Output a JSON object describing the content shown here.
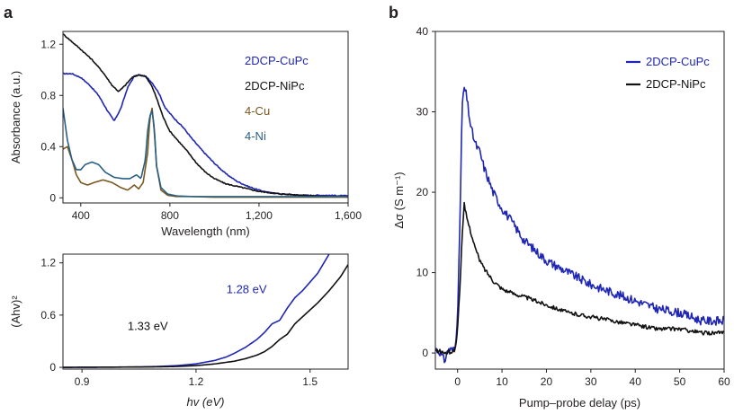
{
  "panel_labels": {
    "a": "a",
    "b": "b"
  },
  "colors": {
    "cupc": "#1f26b5",
    "nipc": "#111111",
    "cu4": "#7a5a22",
    "ni4": "#2a5f84",
    "axis": "#231f20"
  },
  "chart_data": [
    {
      "id": "absorbance",
      "type": "line",
      "title": "",
      "xlabel": "Wavelength (nm)",
      "ylabel": "Absorbance (a.u.)",
      "xlim": [
        320,
        1600
      ],
      "ylim": [
        -0.04,
        1.3
      ],
      "xticks": [
        400,
        800,
        1200,
        1600
      ],
      "xtick_labels": [
        "400",
        "800",
        "1,200",
        "1,600"
      ],
      "yticks": [
        0,
        0.4,
        0.8,
        1.2
      ],
      "ytick_labels": [
        "0",
        "0.4",
        "0.8",
        "1.2"
      ],
      "legend": [
        "2DCP-CuPc",
        "2DCP-NiPc",
        "4-Cu",
        "4-Ni"
      ],
      "legend_position": "top-right",
      "series": [
        {
          "name": "2DCP-CuPc",
          "color": "#1f26b5",
          "noise": 0.004,
          "x": [
            320,
            360,
            400,
            440,
            480,
            520,
            550,
            580,
            610,
            640,
            660,
            690,
            720,
            750,
            780,
            820,
            860,
            900,
            950,
            1000,
            1050,
            1100,
            1150,
            1200,
            1250,
            1300,
            1350,
            1400,
            1500,
            1600
          ],
          "y": [
            0.97,
            0.97,
            0.94,
            0.88,
            0.8,
            0.68,
            0.6,
            0.7,
            0.86,
            0.95,
            0.96,
            0.95,
            0.9,
            0.82,
            0.7,
            0.62,
            0.55,
            0.46,
            0.36,
            0.27,
            0.19,
            0.13,
            0.09,
            0.06,
            0.04,
            0.03,
            0.025,
            0.02,
            0.02,
            0.015
          ]
        },
        {
          "name": "2DCP-NiPc",
          "color": "#111111",
          "noise": 0.004,
          "x": [
            320,
            360,
            400,
            450,
            500,
            540,
            570,
            600,
            630,
            660,
            690,
            720,
            740,
            770,
            800,
            840,
            880,
            920,
            960,
            1000,
            1050,
            1100,
            1150,
            1200,
            1250,
            1300,
            1350,
            1400,
            1500,
            1600
          ],
          "y": [
            1.28,
            1.22,
            1.16,
            1.08,
            0.98,
            0.88,
            0.83,
            0.88,
            0.94,
            0.96,
            0.95,
            0.87,
            0.78,
            0.63,
            0.52,
            0.44,
            0.36,
            0.27,
            0.2,
            0.15,
            0.11,
            0.09,
            0.07,
            0.05,
            0.04,
            0.03,
            0.025,
            0.02,
            0.01,
            0.01
          ]
        },
        {
          "name": "4-Cu",
          "color": "#7a5a22",
          "noise": 0.0,
          "x": [
            320,
            340,
            360,
            380,
            400,
            430,
            460,
            500,
            540,
            580,
            610,
            640,
            660,
            680,
            700,
            710,
            720,
            730,
            740,
            760,
            790,
            830,
            900,
            1000,
            1100,
            1200,
            1400,
            1600
          ],
          "y": [
            0.38,
            0.4,
            0.3,
            0.18,
            0.12,
            0.1,
            0.12,
            0.14,
            0.12,
            0.08,
            0.06,
            0.1,
            0.07,
            0.12,
            0.35,
            0.62,
            0.7,
            0.52,
            0.25,
            0.06,
            0.02,
            0.01,
            0.01,
            0.005,
            0.005,
            0.005,
            0.005,
            0.005
          ]
        },
        {
          "name": "4-Ni",
          "color": "#2a5f84",
          "noise": 0.0,
          "x": [
            320,
            340,
            360,
            380,
            400,
            420,
            450,
            480,
            510,
            550,
            590,
            620,
            650,
            670,
            690,
            700,
            710,
            720,
            730,
            740,
            760,
            790,
            830,
            900,
            1000,
            1100,
            1200,
            1400,
            1600
          ],
          "y": [
            0.7,
            0.45,
            0.3,
            0.22,
            0.22,
            0.26,
            0.28,
            0.26,
            0.2,
            0.16,
            0.15,
            0.15,
            0.18,
            0.15,
            0.3,
            0.52,
            0.64,
            0.68,
            0.55,
            0.25,
            0.08,
            0.03,
            0.015,
            0.01,
            0.01,
            0.01,
            0.01,
            0.01,
            0.01
          ]
        }
      ]
    },
    {
      "id": "tauc",
      "type": "line",
      "title": "",
      "xlabel": "hv (eV)",
      "ylabel": "(Ahv)²",
      "xlim": [
        0.85,
        1.6
      ],
      "ylim": [
        -0.02,
        1.3
      ],
      "xticks": [
        0.9,
        1.2,
        1.5
      ],
      "xtick_labels": [
        "0.9",
        "1.2",
        "1.5"
      ],
      "yticks": [
        0,
        0.6,
        1.2
      ],
      "ytick_labels": [
        "0",
        "0.6",
        "1.2"
      ],
      "annotations": [
        {
          "text": "1.28 eV",
          "color": "#1f26b5",
          "x": 1.28,
          "y": 0.85
        },
        {
          "text": "1.33 eV",
          "color": "#111111",
          "x": 1.02,
          "y": 0.43
        }
      ],
      "series": [
        {
          "name": "2DCP-CuPc",
          "color": "#1f26b5",
          "x": [
            0.85,
            0.95,
            1.05,
            1.1,
            1.15,
            1.2,
            1.25,
            1.28,
            1.3,
            1.33,
            1.36,
            1.38,
            1.4,
            1.42,
            1.44,
            1.46,
            1.48,
            1.5,
            1.52,
            1.55
          ],
          "y": [
            0,
            0.002,
            0.005,
            0.01,
            0.02,
            0.04,
            0.08,
            0.12,
            0.16,
            0.23,
            0.32,
            0.4,
            0.5,
            0.54,
            0.68,
            0.8,
            0.88,
            0.98,
            1.08,
            1.3
          ]
        },
        {
          "name": "2DCP-NiPc",
          "color": "#111111",
          "x": [
            0.85,
            0.95,
            1.05,
            1.1,
            1.15,
            1.2,
            1.25,
            1.3,
            1.33,
            1.36,
            1.38,
            1.4,
            1.42,
            1.44,
            1.46,
            1.48,
            1.5,
            1.52,
            1.55,
            1.58,
            1.6
          ],
          "y": [
            0,
            0.002,
            0.004,
            0.006,
            0.01,
            0.02,
            0.04,
            0.07,
            0.1,
            0.14,
            0.18,
            0.24,
            0.32,
            0.38,
            0.5,
            0.58,
            0.66,
            0.74,
            0.88,
            1.04,
            1.18
          ]
        }
      ]
    },
    {
      "id": "photoconductivity",
      "type": "line",
      "title": "",
      "xlabel": "Pump–probe delay (ps)",
      "ylabel": "Δσ (S m⁻¹)",
      "xlim": [
        -5,
        60
      ],
      "ylim": [
        -2,
        40
      ],
      "xticks": [
        0,
        10,
        20,
        30,
        40,
        50,
        60
      ],
      "xtick_labels": [
        "0",
        "10",
        "20",
        "30",
        "40",
        "50",
        "60"
      ],
      "yticks": [
        0,
        10,
        20,
        30,
        40
      ],
      "ytick_labels": [
        "0",
        "10",
        "20",
        "30",
        "40"
      ],
      "legend": [
        "2DCP-CuPc",
        "2DCP-NiPc"
      ],
      "legend_position": "top-right",
      "series": [
        {
          "name": "2DCP-CuPc",
          "color": "#1f26b5",
          "noise": 0.55,
          "x": [
            -5,
            -4,
            -3,
            -2,
            -1,
            -0.5,
            0,
            0.5,
            1,
            1.5,
            2,
            3,
            4,
            5,
            6,
            8,
            10,
            12,
            15,
            20,
            25,
            30,
            35,
            40,
            45,
            50,
            55,
            60
          ],
          "y": [
            0.5,
            0.2,
            -1.0,
            0.5,
            0.3,
            0.8,
            5,
            15,
            30.5,
            33,
            32,
            28,
            26,
            25,
            23,
            20,
            18,
            16.5,
            14,
            11.5,
            10,
            8.5,
            7.5,
            6.5,
            5.5,
            5,
            4,
            4
          ]
        },
        {
          "name": "2DCP-NiPc",
          "color": "#111111",
          "noise": 0.25,
          "x": [
            -5,
            -4,
            -3,
            -2,
            -1,
            -0.5,
            0,
            0.5,
            1,
            1.5,
            2,
            3,
            4,
            5,
            6,
            8,
            10,
            12,
            15,
            20,
            25,
            30,
            35,
            40,
            45,
            50,
            55,
            60
          ],
          "y": [
            0.3,
            0.2,
            0.0,
            0.1,
            0.2,
            0.5,
            3,
            8,
            14,
            18.5,
            17,
            15,
            13,
            11.5,
            10.5,
            9,
            8,
            7.5,
            7,
            6,
            5,
            4.5,
            4,
            3.5,
            3,
            3,
            2.5,
            2.5
          ]
        }
      ]
    }
  ]
}
